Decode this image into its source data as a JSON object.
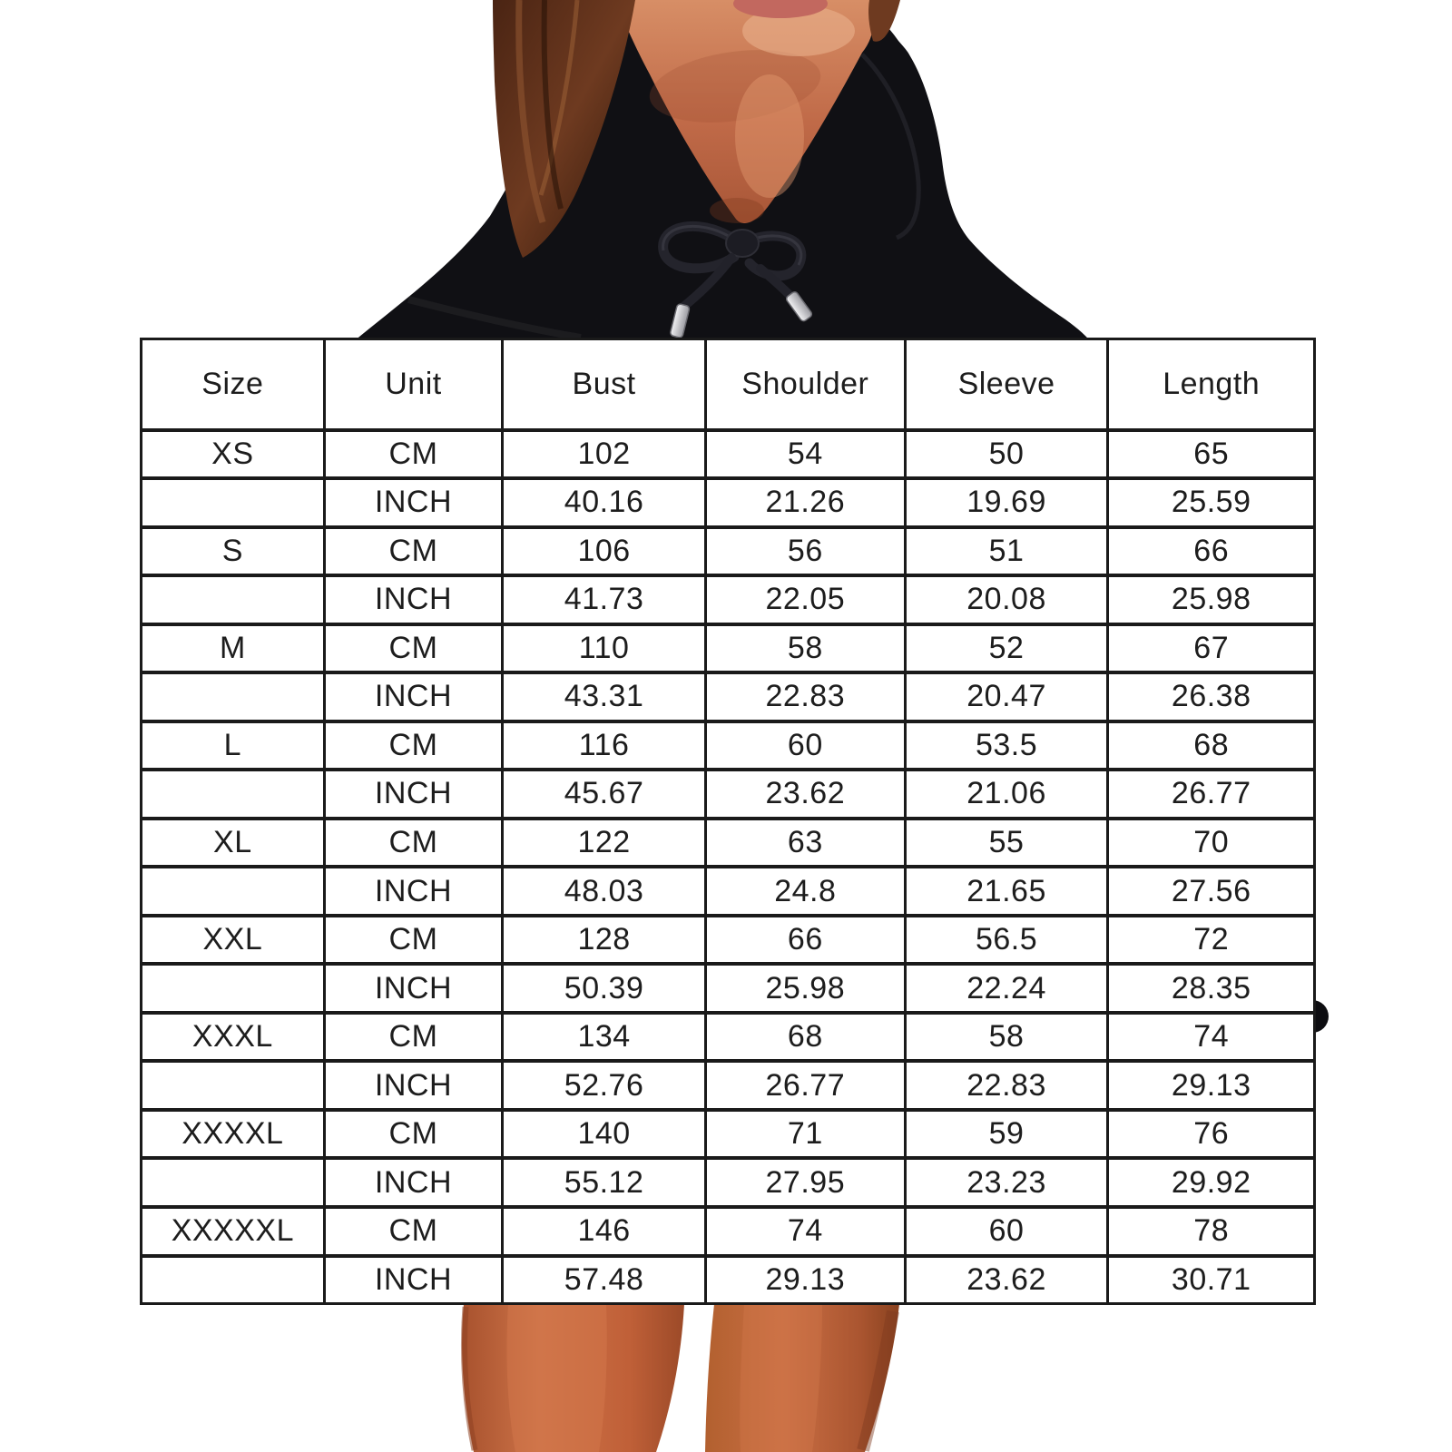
{
  "photo": {
    "alt": "model wearing black pullover hoodie, chin neck and hair visible above the chart, bare thighs visible below it",
    "colors": {
      "background": "#ffffff",
      "hoodie_black": "#101014",
      "hoodie_fold_light": "#3c3c44",
      "drawstring": "#24242c",
      "aglet_silver": "#e8e8ec",
      "hair_brown": "#5d2f1b",
      "hair_light_streak": "#8f5530",
      "neck_skin": "#c06a48",
      "neck_skin_light": "#e2996f",
      "lips_pink": "#c2685f",
      "leg_skin": "#c2653c",
      "leg_skin_dark": "#9c4a28"
    }
  },
  "size_chart": {
    "border_color": "#1a1a1a",
    "text_color": "#1d1d1d",
    "background": "#ffffff",
    "columns": [
      "Size",
      "Unit",
      "Bust",
      "Shoulder",
      "Sleeve",
      "Length"
    ],
    "rows": [
      {
        "size": "XS",
        "unit": "CM",
        "bust": "102",
        "shoulder": "54",
        "sleeve": "50",
        "length": "65"
      },
      {
        "size": "",
        "unit": "INCH",
        "bust": "40.16",
        "shoulder": "21.26",
        "sleeve": "19.69",
        "length": "25.59"
      },
      {
        "size": "S",
        "unit": "CM",
        "bust": "106",
        "shoulder": "56",
        "sleeve": "51",
        "length": "66"
      },
      {
        "size": "",
        "unit": "INCH",
        "bust": "41.73",
        "shoulder": "22.05",
        "sleeve": "20.08",
        "length": "25.98"
      },
      {
        "size": "M",
        "unit": "CM",
        "bust": "110",
        "shoulder": "58",
        "sleeve": "52",
        "length": "67"
      },
      {
        "size": "",
        "unit": "INCH",
        "bust": "43.31",
        "shoulder": "22.83",
        "sleeve": "20.47",
        "length": "26.38"
      },
      {
        "size": "L",
        "unit": "CM",
        "bust": "116",
        "shoulder": "60",
        "sleeve": "53.5",
        "length": "68"
      },
      {
        "size": "",
        "unit": "INCH",
        "bust": "45.67",
        "shoulder": "23.62",
        "sleeve": "21.06",
        "length": "26.77"
      },
      {
        "size": "XL",
        "unit": "CM",
        "bust": "122",
        "shoulder": "63",
        "sleeve": "55",
        "length": "70"
      },
      {
        "size": "",
        "unit": "INCH",
        "bust": "48.03",
        "shoulder": "24.8",
        "sleeve": "21.65",
        "length": "27.56"
      },
      {
        "size": "XXL",
        "unit": "CM",
        "bust": "128",
        "shoulder": "66",
        "sleeve": "56.5",
        "length": "72"
      },
      {
        "size": "",
        "unit": "INCH",
        "bust": "50.39",
        "shoulder": "25.98",
        "sleeve": "22.24",
        "length": "28.35"
      },
      {
        "size": "XXXL",
        "unit": "CM",
        "bust": "134",
        "shoulder": "68",
        "sleeve": "58",
        "length": "74"
      },
      {
        "size": "",
        "unit": "INCH",
        "bust": "52.76",
        "shoulder": "26.77",
        "sleeve": "22.83",
        "length": "29.13"
      },
      {
        "size": "XXXXL",
        "unit": "CM",
        "bust": "140",
        "shoulder": "71",
        "sleeve": "59",
        "length": "76"
      },
      {
        "size": "",
        "unit": "INCH",
        "bust": "55.12",
        "shoulder": "27.95",
        "sleeve": "23.23",
        "length": "29.92"
      },
      {
        "size": "XXXXXL",
        "unit": "CM",
        "bust": "146",
        "shoulder": "74",
        "sleeve": "60",
        "length": "78"
      },
      {
        "size": "",
        "unit": "INCH",
        "bust": "57.48",
        "shoulder": "29.13",
        "sleeve": "23.62",
        "length": "30.71"
      }
    ]
  },
  "chart_data": {
    "type": "table",
    "title": "Hoodie size chart (CM / INCH)",
    "columns": [
      "Size",
      "Unit",
      "Bust",
      "Shoulder",
      "Sleeve",
      "Length"
    ],
    "rows": [
      [
        "XS",
        "CM",
        102,
        54,
        50,
        65
      ],
      [
        "XS",
        "INCH",
        40.16,
        21.26,
        19.69,
        25.59
      ],
      [
        "S",
        "CM",
        106,
        56,
        51,
        66
      ],
      [
        "S",
        "INCH",
        41.73,
        22.05,
        20.08,
        25.98
      ],
      [
        "M",
        "CM",
        110,
        58,
        52,
        67
      ],
      [
        "M",
        "INCH",
        43.31,
        22.83,
        20.47,
        26.38
      ],
      [
        "L",
        "CM",
        116,
        60,
        53.5,
        68
      ],
      [
        "L",
        "INCH",
        45.67,
        23.62,
        21.06,
        26.77
      ],
      [
        "XL",
        "CM",
        122,
        63,
        55,
        70
      ],
      [
        "XL",
        "INCH",
        48.03,
        24.8,
        21.65,
        27.56
      ],
      [
        "XXL",
        "CM",
        128,
        66,
        56.5,
        72
      ],
      [
        "XXL",
        "INCH",
        50.39,
        25.98,
        22.24,
        28.35
      ],
      [
        "XXXL",
        "CM",
        134,
        68,
        58,
        74
      ],
      [
        "XXXL",
        "INCH",
        52.76,
        26.77,
        22.83,
        29.13
      ],
      [
        "XXXXL",
        "CM",
        140,
        71,
        59,
        76
      ],
      [
        "XXXXL",
        "INCH",
        55.12,
        27.95,
        23.23,
        29.92
      ],
      [
        "XXXXXL",
        "CM",
        146,
        74,
        60,
        78
      ],
      [
        "XXXXXL",
        "INCH",
        57.48,
        29.13,
        23.62,
        30.71
      ]
    ]
  }
}
